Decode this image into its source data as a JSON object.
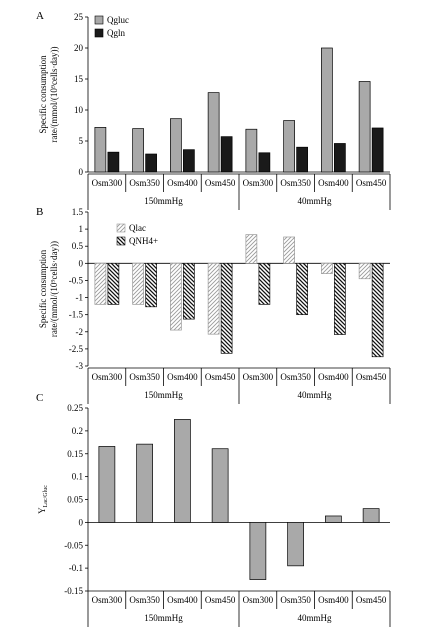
{
  "chart_data": [
    {
      "type": "bar",
      "panel_label": "A",
      "ylabel": "Specific consumption rate/(mmol/(10⁹cells·day))",
      "ylim": [
        0,
        25
      ],
      "yticks": [
        0,
        5,
        10,
        15,
        20,
        25
      ],
      "categories": [
        "Osm300",
        "Osm350",
        "Osm400",
        "Osm450",
        "Osm300",
        "Osm350",
        "Osm400",
        "Osm450"
      ],
      "groups": [
        "150mmHg",
        "40mmHg"
      ],
      "legend_position": "top-left",
      "series": [
        {
          "name": "Qgluc",
          "color": "#a9a9a9",
          "pattern": "solid",
          "values": [
            7.2,
            7.0,
            8.6,
            12.8,
            6.9,
            8.3,
            20.0,
            14.6
          ]
        },
        {
          "name": "Qgln",
          "color": "#1a1a1a",
          "pattern": "solid",
          "values": [
            3.2,
            2.9,
            3.6,
            5.7,
            3.1,
            4.0,
            4.6,
            7.1
          ]
        }
      ]
    },
    {
      "type": "bar",
      "panel_label": "B",
      "ylabel": "Specific consumption rate/(mmol/(10⁹cells·day))",
      "ylim": [
        -3,
        1.5
      ],
      "yticks": [
        -3,
        -2.5,
        -2,
        -1.5,
        -1,
        -0.5,
        0,
        0.5,
        1,
        1.5
      ],
      "categories": [
        "Osm300",
        "Osm350",
        "Osm400",
        "Osm450",
        "Osm300",
        "Osm350",
        "Osm400",
        "Osm450"
      ],
      "groups": [
        "150mmHg",
        "40mmHg"
      ],
      "legend_position": "top-left",
      "series": [
        {
          "name": "Qlac",
          "color": "#9a9a9a",
          "pattern": "light-hatch",
          "values": [
            -1.2,
            -1.2,
            -1.95,
            -2.07,
            0.84,
            0.77,
            -0.3,
            -0.45
          ]
        },
        {
          "name": "QNH4+",
          "color": "#111111",
          "pattern": "dense-hatch",
          "values": [
            -1.2,
            -1.27,
            -1.63,
            -2.63,
            -1.2,
            -1.5,
            -2.08,
            -2.73
          ]
        }
      ]
    },
    {
      "type": "bar",
      "panel_label": "C",
      "ylabel": "Y",
      "ylabel_sub": "Lac/Gluc",
      "ylim": [
        -0.15,
        0.25
      ],
      "yticks": [
        -0.15,
        -0.1,
        -0.05,
        0,
        0.05,
        0.1,
        0.15,
        0.2,
        0.25
      ],
      "categories": [
        "Osm300",
        "Osm350",
        "Osm400",
        "Osm450",
        "Osm300",
        "Osm350",
        "Osm400",
        "Osm450"
      ],
      "groups": [
        "150mmHg",
        "40mmHg"
      ],
      "series": [
        {
          "color": "#a9a9a9",
          "pattern": "solid",
          "values": [
            0.166,
            0.171,
            0.225,
            0.161,
            -0.125,
            -0.095,
            0.014,
            0.03
          ]
        }
      ]
    }
  ]
}
